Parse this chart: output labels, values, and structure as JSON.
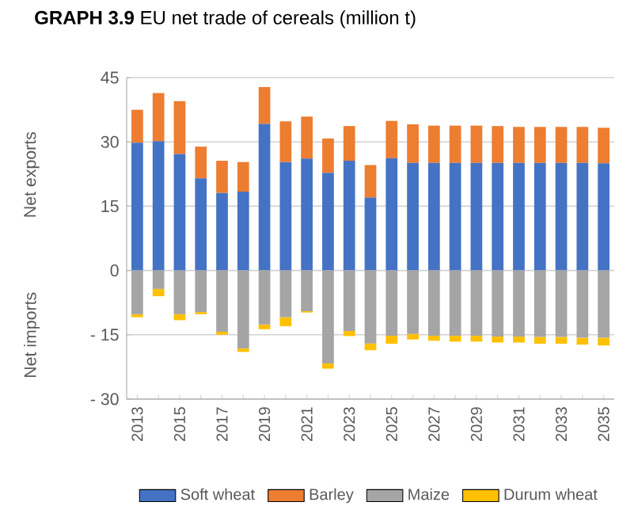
{
  "chart_data": {
    "type": "bar",
    "title": "**GRAPH 3.9** EU net trade of cereals (million t)",
    "ylabel": "Net exports",
    "annotations": [
      "Net imports"
    ],
    "categories": [
      "2013",
      null,
      "2015",
      null,
      "2017",
      null,
      "2019",
      null,
      "2021",
      null,
      "2023",
      null,
      "2025",
      null,
      "2027",
      null,
      "2029",
      null,
      "2031",
      null,
      "2033",
      null,
      "2035"
    ],
    "series": [
      {
        "name": "Soft wheat",
        "color": "#4472c4",
        "values": [
          29.8,
          30.2,
          27.2,
          21.5,
          18.1,
          18.4,
          34.2,
          25.3,
          26.1,
          22.8,
          25.6,
          17.0,
          26.2,
          25.1,
          25.1,
          25.1,
          25.1,
          25.1,
          25.1,
          25.1,
          25.1,
          25.1,
          25.0
        ]
      },
      {
        "name": "Barley",
        "color": "#ed7d31",
        "values": [
          7.7,
          11.2,
          12.3,
          7.4,
          7.5,
          6.9,
          8.6,
          9.5,
          9.8,
          8.0,
          8.1,
          7.6,
          8.7,
          9.0,
          8.7,
          8.7,
          8.7,
          8.6,
          8.4,
          8.4,
          8.4,
          8.4,
          8.3
        ]
      },
      {
        "name": "Maize",
        "color": "#a5a5a5",
        "values": [
          -10.2,
          -4.3,
          -10.2,
          -9.7,
          -14.3,
          -18.2,
          -12.6,
          -10.9,
          -9.5,
          -21.7,
          -14.1,
          -17.0,
          -15.2,
          -14.8,
          -15.2,
          -15.2,
          -15.2,
          -15.4,
          -15.4,
          -15.5,
          -15.5,
          -15.7,
          -15.7
        ]
      },
      {
        "name": "Durum wheat",
        "color": "#ffc000",
        "values": [
          -0.7,
          -1.7,
          -1.4,
          -0.5,
          -0.7,
          -0.8,
          -1.1,
          -2.1,
          -0.3,
          -1.2,
          -1.2,
          -1.6,
          -1.9,
          -1.3,
          -1.2,
          -1.4,
          -1.4,
          -1.4,
          -1.4,
          -1.6,
          -1.6,
          -1.6,
          -1.8
        ]
      }
    ],
    "stacked": true,
    "ylim": [
      -30,
      45
    ],
    "yticks": [
      {
        "value": -30,
        "label": "- 30"
      },
      {
        "value": -15,
        "label": "- 15"
      },
      0,
      15,
      30,
      45
    ],
    "grid": "y",
    "legend": "bottom"
  }
}
